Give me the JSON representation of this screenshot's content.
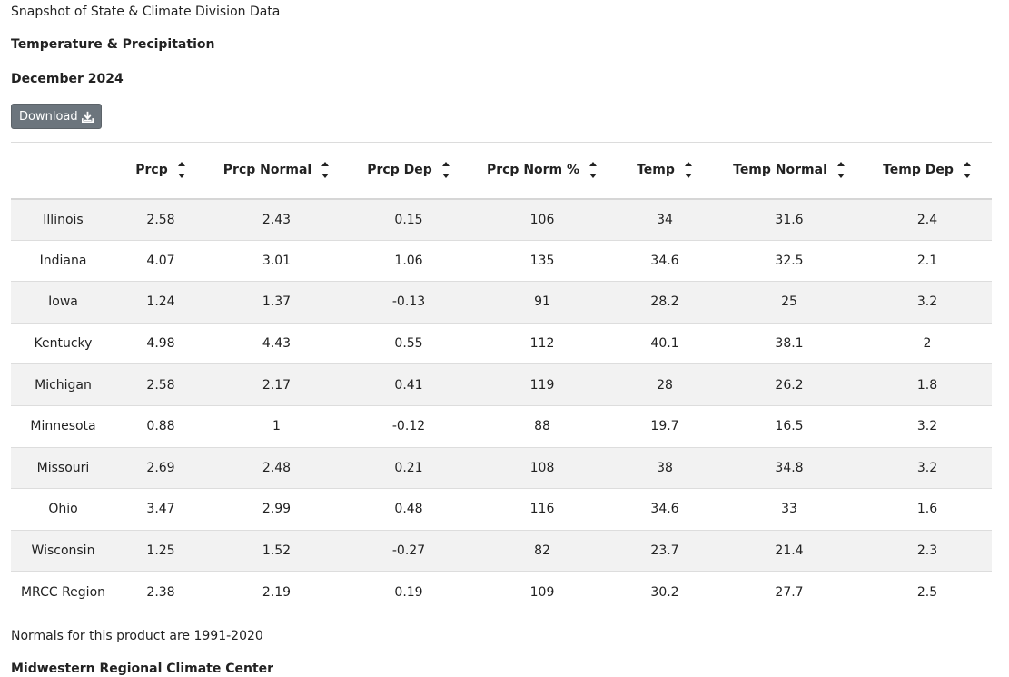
{
  "header": {
    "breadcrumb": "Snapshot of State & Climate Division Data",
    "title": "Temperature & Precipitation",
    "period": "December 2024",
    "download_label": "Download",
    "download_icon": "download-icon"
  },
  "table": {
    "columns": [
      "",
      "Prcp",
      "Prcp Normal",
      "Prcp Dep",
      "Prcp Norm %",
      "Temp",
      "Temp Normal",
      "Temp Dep"
    ],
    "sort_icon": "sort-updown-icon",
    "rows": [
      [
        "Illinois",
        "2.58",
        "2.43",
        "0.15",
        "106",
        "34",
        "31.6",
        "2.4"
      ],
      [
        "Indiana",
        "4.07",
        "3.01",
        "1.06",
        "135",
        "34.6",
        "32.5",
        "2.1"
      ],
      [
        "Iowa",
        "1.24",
        "1.37",
        "-0.13",
        "91",
        "28.2",
        "25",
        "3.2"
      ],
      [
        "Kentucky",
        "4.98",
        "4.43",
        "0.55",
        "112",
        "40.1",
        "38.1",
        "2"
      ],
      [
        "Michigan",
        "2.58",
        "2.17",
        "0.41",
        "119",
        "28",
        "26.2",
        "1.8"
      ],
      [
        "Minnesota",
        "0.88",
        "1",
        "-0.12",
        "88",
        "19.7",
        "16.5",
        "3.2"
      ],
      [
        "Missouri",
        "2.69",
        "2.48",
        "0.21",
        "108",
        "38",
        "34.8",
        "3.2"
      ],
      [
        "Ohio",
        "3.47",
        "2.99",
        "0.48",
        "116",
        "34.6",
        "33",
        "1.6"
      ],
      [
        "Wisconsin",
        "1.25",
        "1.52",
        "-0.27",
        "82",
        "23.7",
        "21.4",
        "2.3"
      ],
      [
        "MRCC Region",
        "2.38",
        "2.19",
        "0.19",
        "109",
        "30.2",
        "27.7",
        "2.5"
      ]
    ]
  },
  "footer": {
    "normals_note": "Normals for this product are 1991-2020",
    "organization": "Midwestern Regional Climate Center"
  },
  "colors": {
    "button_bg": "#6c757d",
    "row_stripe": "#f2f2f2",
    "text": "#222222"
  }
}
